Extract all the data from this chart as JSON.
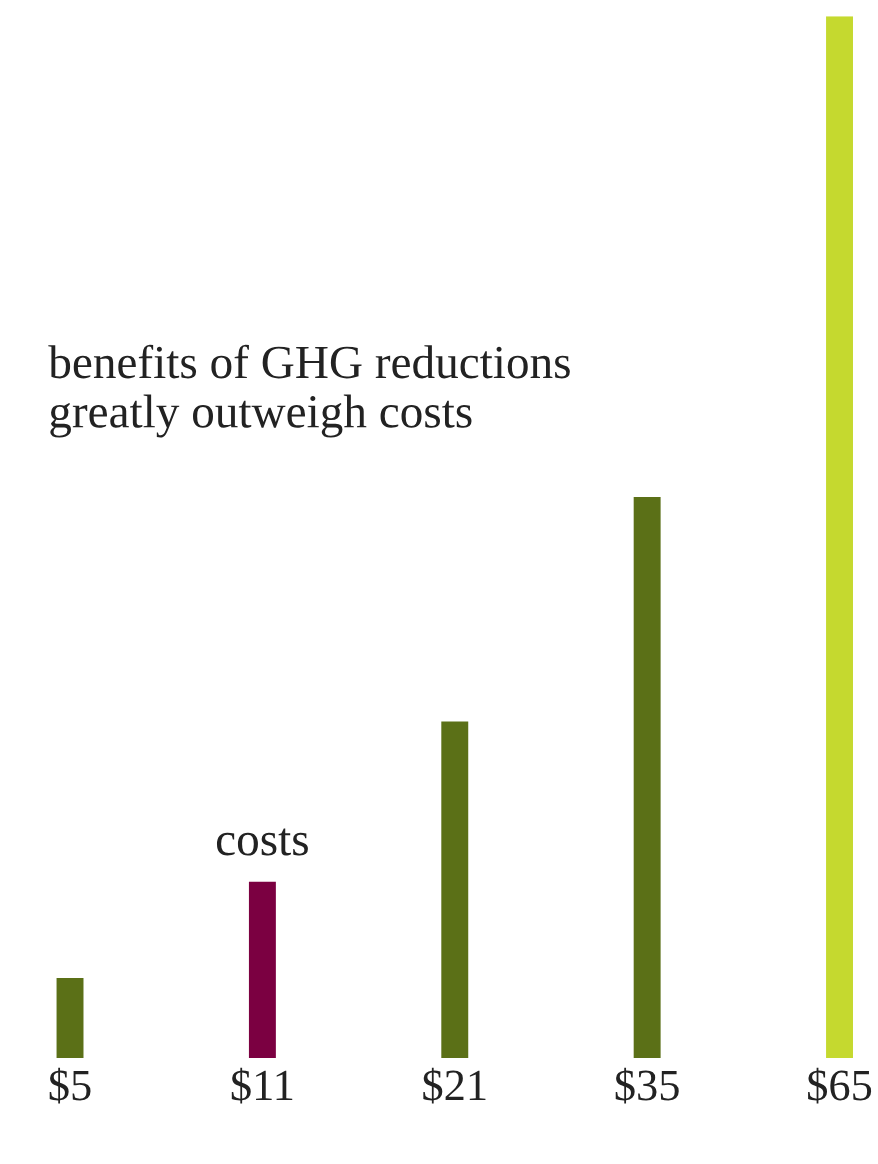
{
  "chart_data": {
    "type": "bar",
    "categories": [
      null,
      null,
      null,
      null,
      null
    ],
    "values": [
      5,
      11,
      21,
      35,
      65
    ],
    "colors": [
      "#5b7017",
      "#7b0041",
      "#5b7017",
      "#5b7017",
      "#c5d92f"
    ],
    "value_labels": [
      "$5",
      "$11",
      "$21",
      "$35",
      "$65"
    ],
    "annotations": [
      "benefits of GHG reductions\ngreatly outweigh costs",
      "costs"
    ],
    "grid": false
  }
}
